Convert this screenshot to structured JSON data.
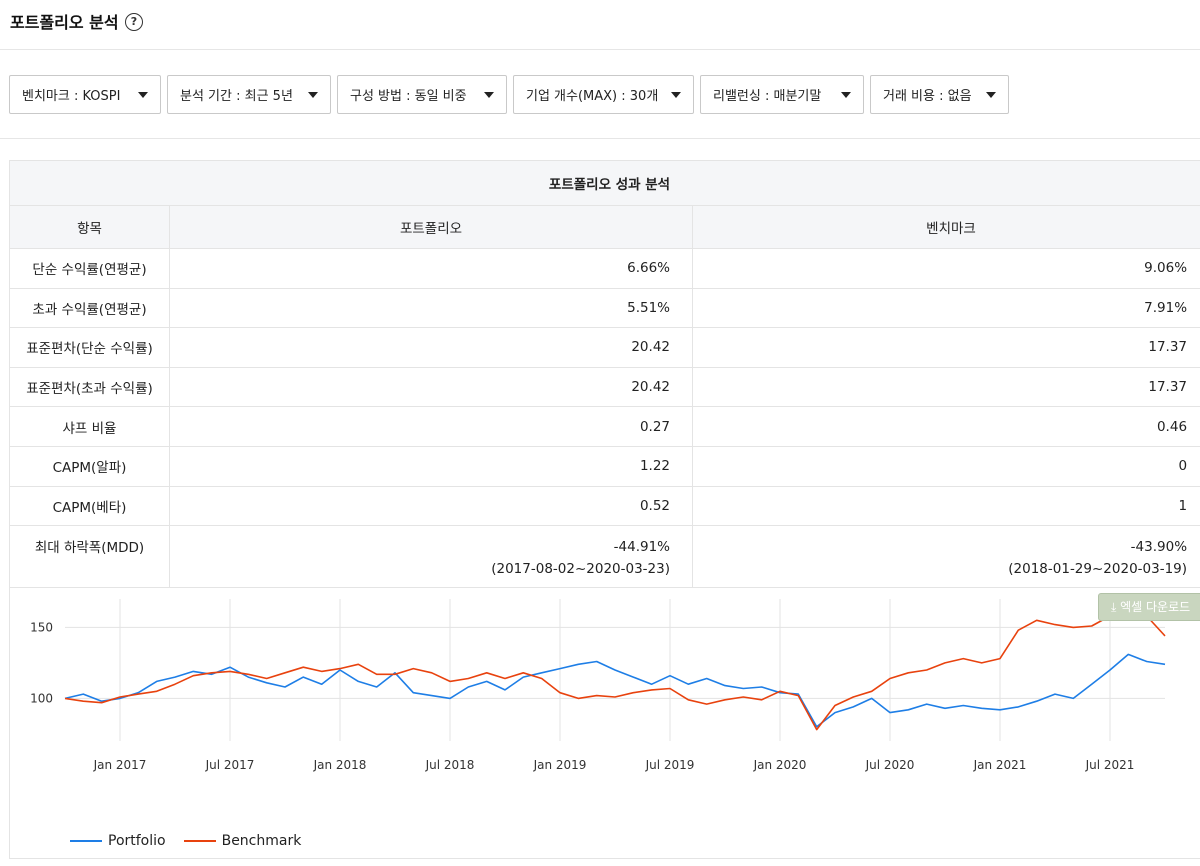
{
  "header": {
    "title": "포트폴리오 분석",
    "help_icon": "?"
  },
  "filters": [
    {
      "label": "벤치마크 : KOSPI"
    },
    {
      "label": "분석 기간 : 최근 5년"
    },
    {
      "label": "구성 방법 : 동일 비중"
    },
    {
      "label": "기업 개수(MAX) : 30개"
    },
    {
      "label": "리밸런싱 : 매분기말"
    },
    {
      "label": "거래 비용 : 없음"
    }
  ],
  "table": {
    "caption": "포트폴리오 성과 분석",
    "headers": [
      "항목",
      "포트폴리오",
      "벤치마크"
    ],
    "rows": [
      {
        "label": "단순 수익률(연평균)",
        "portfolio": "6.66%",
        "benchmark": "9.06%"
      },
      {
        "label": "초과 수익률(연평균)",
        "portfolio": "5.51%",
        "benchmark": "7.91%"
      },
      {
        "label": "표준편차(단순 수익률)",
        "portfolio": "20.42",
        "benchmark": "17.37"
      },
      {
        "label": "표준편차(초과 수익률)",
        "portfolio": "20.42",
        "benchmark": "17.37"
      },
      {
        "label": "샤프 비율",
        "portfolio": "0.27",
        "benchmark": "0.46"
      },
      {
        "label": "CAPM(알파)",
        "portfolio": "1.22",
        "benchmark": "0"
      },
      {
        "label": "CAPM(베타)",
        "portfolio": "0.52",
        "benchmark": "1"
      }
    ],
    "mdd": {
      "label": "최대 하락폭(MDD)",
      "portfolio": "-44.91%",
      "portfolio_period": "(2017-08-02~2020-03-23)",
      "benchmark": "-43.90%",
      "benchmark_period": "(2018-01-29~2020-03-19)"
    }
  },
  "excel_button": {
    "label": "엑셀 다운로드"
  },
  "chart_data": {
    "type": "line",
    "y_ticks": [
      100,
      150
    ],
    "ylim": [
      70,
      170
    ],
    "x_ticks": [
      "Jan 2017",
      "Jul 2017",
      "Jan 2018",
      "Jul 2018",
      "Jan 2019",
      "Jul 2019",
      "Jan 2020",
      "Jul 2020",
      "Jan 2021",
      "Jul 2021"
    ],
    "x": [
      "2016-10",
      "2016-11",
      "2016-12",
      "2017-01",
      "2017-02",
      "2017-03",
      "2017-04",
      "2017-05",
      "2017-06",
      "2017-07",
      "2017-08",
      "2017-09",
      "2017-10",
      "2017-11",
      "2017-12",
      "2018-01",
      "2018-02",
      "2018-03",
      "2018-04",
      "2018-05",
      "2018-06",
      "2018-07",
      "2018-08",
      "2018-09",
      "2018-10",
      "2018-11",
      "2018-12",
      "2019-01",
      "2019-02",
      "2019-03",
      "2019-04",
      "2019-05",
      "2019-06",
      "2019-07",
      "2019-08",
      "2019-09",
      "2019-10",
      "2019-11",
      "2019-12",
      "2020-01",
      "2020-02",
      "2020-03",
      "2020-04",
      "2020-05",
      "2020-06",
      "2020-07",
      "2020-08",
      "2020-09",
      "2020-10",
      "2020-11",
      "2020-12",
      "2021-01",
      "2021-02",
      "2021-03",
      "2021-04",
      "2021-05",
      "2021-06",
      "2021-07",
      "2021-08",
      "2021-09",
      "2021-10"
    ],
    "series": [
      {
        "name": "Portfolio",
        "color": "#1e7ee6",
        "values": [
          100,
          103,
          98,
          100,
          104,
          112,
          115,
          119,
          117,
          122,
          115,
          111,
          108,
          115,
          110,
          120,
          112,
          108,
          118,
          104,
          102,
          100,
          108,
          112,
          106,
          115,
          118,
          121,
          124,
          126,
          120,
          115,
          110,
          116,
          110,
          114,
          109,
          107,
          108,
          104,
          103,
          80,
          90,
          94,
          100,
          90,
          92,
          96,
          93,
          95,
          93,
          92,
          94,
          98,
          103,
          100,
          110,
          120,
          131,
          126,
          124
        ]
      },
      {
        "name": "Benchmark",
        "color": "#e8420e",
        "values": [
          100,
          98,
          97,
          101,
          103,
          105,
          110,
          116,
          118,
          119,
          117,
          114,
          118,
          122,
          119,
          121,
          124,
          117,
          117,
          121,
          118,
          112,
          114,
          118,
          114,
          118,
          114,
          104,
          100,
          102,
          101,
          104,
          106,
          107,
          99,
          96,
          99,
          101,
          99,
          105,
          102,
          78,
          95,
          101,
          105,
          114,
          118,
          120,
          125,
          128,
          125,
          128,
          148,
          155,
          152,
          150,
          151,
          158,
          158,
          158,
          144
        ]
      }
    ]
  }
}
